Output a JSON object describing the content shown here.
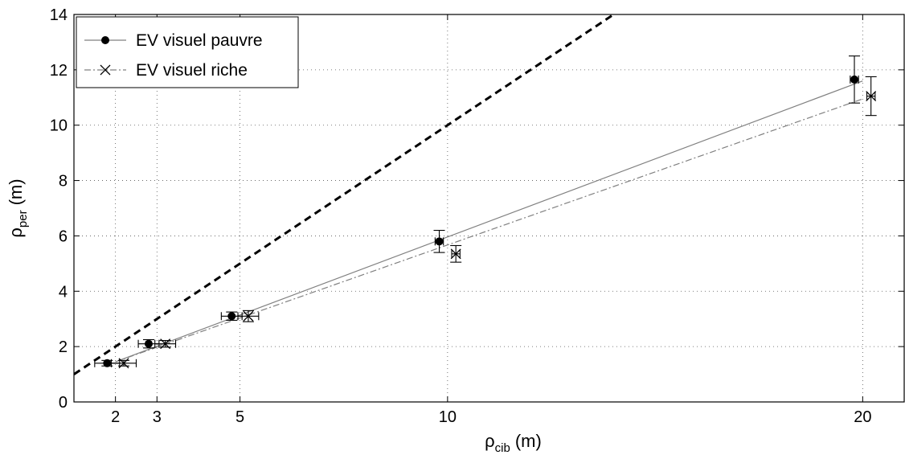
{
  "chart_data": {
    "type": "scatter",
    "xlabel": {
      "main": "ρ",
      "sub": "cib",
      "unit": "(m)"
    },
    "ylabel": {
      "main": "ρ",
      "sub": "per",
      "unit": "(m)"
    },
    "x_ticks": [
      2,
      3,
      5,
      10,
      20
    ],
    "y_ticks": [
      0,
      2,
      4,
      6,
      8,
      10,
      12,
      14
    ],
    "xlim": [
      1,
      21
    ],
    "ylim": [
      0,
      14
    ],
    "grid": true,
    "legend_position": "top-left",
    "identity_line": {
      "x": [
        1,
        14
      ],
      "y": [
        1,
        14
      ],
      "style": "dashed",
      "color": "#000000"
    },
    "series": [
      {
        "name": "EV visuel pauvre",
        "marker": "filled-circle",
        "color": "#000000",
        "fit_color": "#808080",
        "fit_style": "solid",
        "points": [
          {
            "x": 1.8,
            "y": 1.4,
            "xerr": 0.3,
            "yerr": 0.1
          },
          {
            "x": 2.8,
            "y": 2.1,
            "xerr": 0.25,
            "yerr": 0.15
          },
          {
            "x": 4.8,
            "y": 3.1,
            "xerr": 0.25,
            "yerr": 0.15
          },
          {
            "x": 9.8,
            "y": 5.8,
            "xerr": 0.1,
            "yerr": 0.4
          },
          {
            "x": 19.8,
            "y": 11.65,
            "xerr": 0.1,
            "yerr": 0.85
          }
        ],
        "fit": {
          "x": [
            2,
            20
          ],
          "y": [
            1.45,
            11.6
          ]
        }
      },
      {
        "name": "EV visuel riche",
        "marker": "x",
        "color": "#000000",
        "fit_color": "#808080",
        "fit_style": "dashdot",
        "points": [
          {
            "x": 2.2,
            "y": 1.4,
            "xerr": 0.3,
            "yerr": 0.1
          },
          {
            "x": 3.2,
            "y": 2.1,
            "xerr": 0.25,
            "yerr": 0.12
          },
          {
            "x": 5.2,
            "y": 3.1,
            "xerr": 0.25,
            "yerr": 0.2
          },
          {
            "x": 10.2,
            "y": 5.35,
            "xerr": 0.1,
            "yerr": 0.3
          },
          {
            "x": 20.2,
            "y": 11.05,
            "xerr": 0.1,
            "yerr": 0.7
          }
        ],
        "fit": {
          "x": [
            2,
            20
          ],
          "y": [
            1.45,
            10.95
          ]
        }
      }
    ]
  }
}
